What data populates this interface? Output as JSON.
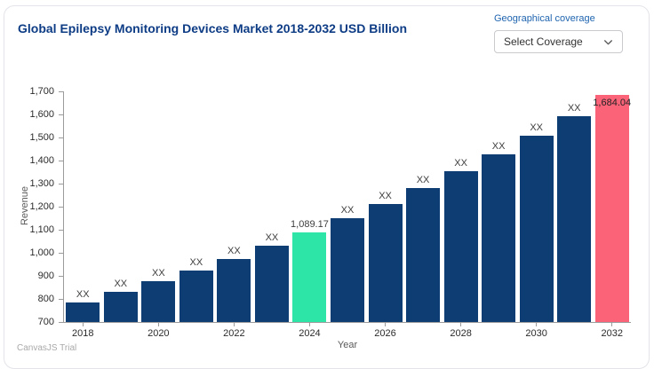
{
  "header": {
    "title": "Global Epilepsy Monitoring Devices Market 2018-2032 USD Billion",
    "coverage": {
      "label": "Geographical coverage",
      "selected": "Select Coverage"
    }
  },
  "footer": {
    "watermark": "CanvasJS Trial"
  },
  "colors": {
    "title": "#0d3c85",
    "coverage_label": "#1f64b0",
    "bar_default": "#0e3d74",
    "bar_2024_highlight": "#2ce5a7",
    "bar_2032_highlight": "#fa6378",
    "axis": "#9b9b9b"
  },
  "chart_data": {
    "type": "bar",
    "title": "Global Epilepsy Monitoring Devices Market 2018-2032 USD Billion",
    "xlabel": "Year",
    "ylabel": "Revenue",
    "ylim": [
      700,
      1700
    ],
    "ytick_step": 100,
    "grid": false,
    "legend_position": "none",
    "categories": [
      2018,
      2019,
      2020,
      2021,
      2022,
      2023,
      2024,
      2025,
      2026,
      2027,
      2028,
      2029,
      2030,
      2031,
      2032
    ],
    "values": [
      785,
      832,
      878,
      925,
      975,
      1030,
      1089.17,
      1150,
      1213,
      1280,
      1352,
      1428,
      1508,
      1592,
      1684.04
    ],
    "bar_labels": [
      "XX",
      "XX",
      "XX",
      "XX",
      "XX",
      "XX",
      "1,089.17",
      "XX",
      "XX",
      "XX",
      "XX",
      "XX",
      "XX",
      "XX",
      "1,684.04"
    ],
    "bar_colors": [
      "#0e3d74",
      "#0e3d74",
      "#0e3d74",
      "#0e3d74",
      "#0e3d74",
      "#0e3d74",
      "#2ce5a7",
      "#0e3d74",
      "#0e3d74",
      "#0e3d74",
      "#0e3d74",
      "#0e3d74",
      "#0e3d74",
      "#0e3d74",
      "#fa6378"
    ],
    "xticks": [
      2018,
      2020,
      2022,
      2024,
      2026,
      2028,
      2030,
      2032
    ]
  }
}
